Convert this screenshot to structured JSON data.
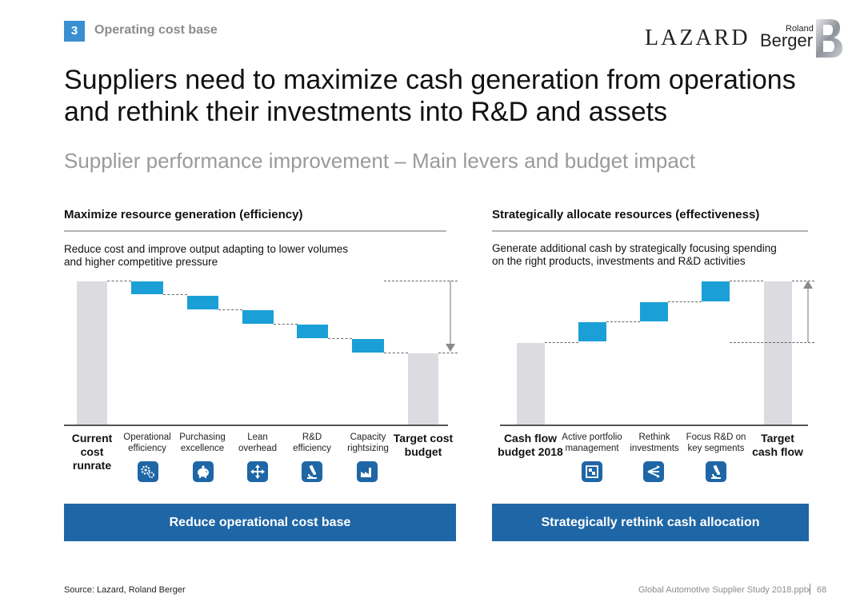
{
  "header": {
    "section_number": "3",
    "section_title": "Operating cost base",
    "logo_lazard": "LAZARD",
    "logo_rb_top": "Roland",
    "logo_rb_bottom": "Berger"
  },
  "title": "Suppliers need to maximize cash generation from operations and rethink their investments into R&D and assets",
  "subtitle": "Supplier performance improvement – Main levers and budget impact",
  "left": {
    "heading": "Maximize resource generation (efficiency)",
    "description_line1": "Reduce cost and improve output adapting to lower volumes",
    "description_line2": "and higher competitive pressure",
    "start_label": [
      "Current",
      "cost",
      "runrate"
    ],
    "end_label": [
      "Target cost",
      "budget"
    ],
    "levers": [
      {
        "label1": "Operational",
        "label2": "efficiency",
        "icon": "gears-icon"
      },
      {
        "label1": "Purchasing",
        "label2": "excellence",
        "icon": "piggy-bank-icon"
      },
      {
        "label1": "Lean",
        "label2": "overhead",
        "icon": "move-arrows-icon"
      },
      {
        "label1": "R&D efficiency",
        "label2": "",
        "icon": "microscope-icon"
      },
      {
        "label1": "Capacity",
        "label2": "rightsizing",
        "icon": "factory-icon"
      }
    ],
    "footer": "Reduce operational cost base"
  },
  "right": {
    "heading": "Strategically allocate resources (effectiveness)",
    "description_line1": "Generate additional cash by strategically focusing spending",
    "description_line2": "on the right products, investments and R&D activities",
    "start_label": [
      "Cash flow",
      "budget 2018"
    ],
    "end_label": [
      "Target",
      "cash flow"
    ],
    "levers": [
      {
        "label1": "Active portfolio",
        "label2": "management",
        "icon": "portfolio-icon"
      },
      {
        "label1": "Rethink",
        "label2": "investments",
        "icon": "share-arrows-icon"
      },
      {
        "label1": "Focus R&D on",
        "label2": "key segments",
        "icon": "microscope-icon"
      }
    ],
    "footer": "Strategically rethink cash allocation"
  },
  "chart_data": [
    {
      "type": "waterfall",
      "categories": [
        "Current cost runrate",
        "Operational efficiency",
        "Purchasing excellence",
        "Lean overhead",
        "R&D efficiency",
        "Capacity rightsizing",
        "Target cost budget"
      ],
      "values": [
        100,
        -10,
        -10,
        -10,
        -10,
        -10,
        50
      ],
      "title": "",
      "xlabel": "",
      "ylabel": "",
      "colors": {
        "total": "#dcdce0",
        "delta": "#1aa0d6"
      }
    },
    {
      "type": "waterfall",
      "categories": [
        "Cash flow budget 2018",
        "Active portfolio management",
        "Rethink investments",
        "Focus R&D on key segments",
        "Target cash flow"
      ],
      "values": [
        57,
        14,
        14,
        14,
        99
      ],
      "title": "",
      "xlabel": "",
      "ylabel": "",
      "colors": {
        "total": "#dcdce0",
        "delta": "#1aa0d6"
      }
    }
  ],
  "footer": {
    "source": "Source: Lazard, Roland Berger",
    "file": "Global Automotive Supplier Study 2018.pptx",
    "page": "68"
  }
}
